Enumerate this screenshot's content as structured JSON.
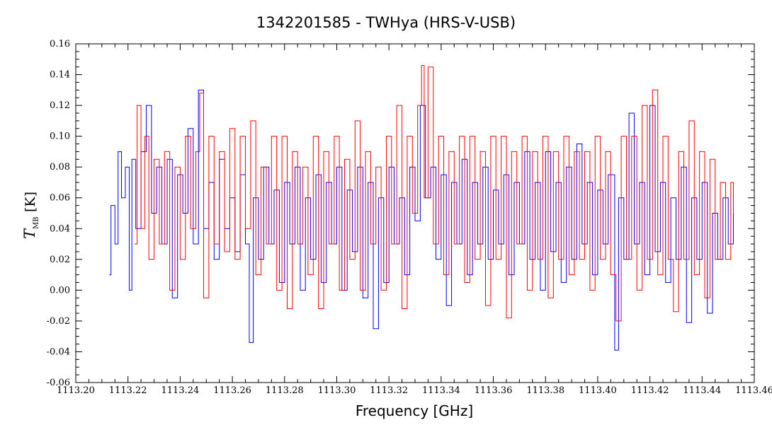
{
  "chart_data": {
    "type": "line",
    "title": "1342201585 - TWHya (HRS-V-USB)",
    "xlabel": "Frequency [GHz]",
    "ylabel": {
      "main": "T",
      "subscript": "MB",
      "unit": "[K]"
    },
    "xlim": [
      1113.2,
      1113.46
    ],
    "ylim": [
      -0.06,
      0.16
    ],
    "x_ticks": [
      "1113.20",
      "1113.22",
      "1113.24",
      "1113.26",
      "1113.28",
      "1113.30",
      "1113.32",
      "1113.34",
      "1113.36",
      "1113.38",
      "1113.40",
      "1113.42",
      "1113.44",
      "1113.46"
    ],
    "y_ticks": [
      "-0.06",
      "-0.04",
      "-0.02",
      "0.00",
      "0.02",
      "0.04",
      "0.06",
      "0.08",
      "0.10",
      "0.12",
      "0.14",
      "0.16"
    ],
    "grid": false,
    "legend": "none",
    "series": [
      {
        "color": "#0000ff",
        "x_start": 1113.2128,
        "x_end": 1113.452,
        "points": [
          [
            1113.2128,
            0.01
          ],
          [
            1113.2135,
            0.055
          ],
          [
            1113.215,
            0.03
          ],
          [
            1113.2162,
            0.09
          ],
          [
            1113.2175,
            0.06
          ],
          [
            1113.219,
            0.08
          ],
          [
            1113.2205,
            0.0
          ],
          [
            1113.2215,
            0.085
          ],
          [
            1113.223,
            0.04
          ],
          [
            1113.225,
            0.09
          ],
          [
            1113.227,
            0.12
          ],
          [
            1113.229,
            0.05
          ],
          [
            1113.231,
            0.08
          ],
          [
            1113.233,
            0.03
          ],
          [
            1113.235,
            0.085
          ],
          [
            1113.237,
            -0.005
          ],
          [
            1113.239,
            0.075
          ],
          [
            1113.241,
            0.05
          ],
          [
            1113.243,
            0.105
          ],
          [
            1113.245,
            0.03
          ],
          [
            1113.247,
            0.13
          ],
          [
            1113.249,
            0.04
          ],
          [
            1113.251,
            0.07
          ],
          [
            1113.253,
            0.02
          ],
          [
            1113.255,
            0.085
          ],
          [
            1113.257,
            0.04
          ],
          [
            1113.259,
            0.06
          ],
          [
            1113.261,
            0.025
          ],
          [
            1113.263,
            0.075
          ],
          [
            1113.265,
            0.03
          ],
          [
            1113.2665,
            -0.034
          ],
          [
            1113.268,
            0.06
          ],
          [
            1113.27,
            0.02
          ],
          [
            1113.272,
            0.08
          ],
          [
            1113.274,
            0.03
          ],
          [
            1113.276,
            0.065
          ],
          [
            1113.278,
            0.005
          ],
          [
            1113.28,
            0.07
          ],
          [
            1113.282,
            0.03
          ],
          [
            1113.284,
            0.08
          ],
          [
            1113.286,
            0.0
          ],
          [
            1113.288,
            0.06
          ],
          [
            1113.29,
            0.02
          ],
          [
            1113.292,
            0.075
          ],
          [
            1113.294,
            0.005
          ],
          [
            1113.296,
            0.07
          ],
          [
            1113.298,
            0.03
          ],
          [
            1113.3,
            0.08
          ],
          [
            1113.302,
            0.0
          ],
          [
            1113.304,
            0.065
          ],
          [
            1113.306,
            0.025
          ],
          [
            1113.308,
            0.08
          ],
          [
            1113.31,
            -0.005
          ],
          [
            1113.312,
            0.07
          ],
          [
            1113.314,
            -0.025
          ],
          [
            1113.316,
            0.06
          ],
          [
            1113.318,
            0.005
          ],
          [
            1113.32,
            0.08
          ],
          [
            1113.322,
            0.03
          ],
          [
            1113.324,
            0.06
          ],
          [
            1113.326,
            0.01
          ],
          [
            1113.328,
            0.08
          ],
          [
            1113.33,
            0.045
          ],
          [
            1113.332,
            0.12
          ],
          [
            1113.334,
            0.06
          ],
          [
            1113.336,
            0.08
          ],
          [
            1113.338,
            0.02
          ],
          [
            1113.34,
            0.075
          ],
          [
            1113.342,
            -0.01
          ],
          [
            1113.344,
            0.07
          ],
          [
            1113.346,
            0.03
          ],
          [
            1113.348,
            0.085
          ],
          [
            1113.35,
            0.01
          ],
          [
            1113.352,
            0.07
          ],
          [
            1113.354,
            0.03
          ],
          [
            1113.356,
            0.08
          ],
          [
            1113.358,
            0.02
          ],
          [
            1113.36,
            0.065
          ],
          [
            1113.362,
            0.03
          ],
          [
            1113.364,
            0.075
          ],
          [
            1113.366,
            0.01
          ],
          [
            1113.368,
            0.07
          ],
          [
            1113.37,
            0.03
          ],
          [
            1113.372,
            0.09
          ],
          [
            1113.374,
            0.02
          ],
          [
            1113.376,
            0.07
          ],
          [
            1113.378,
            0.0
          ],
          [
            1113.38,
            0.09
          ],
          [
            1113.382,
            0.025
          ],
          [
            1113.384,
            0.07
          ],
          [
            1113.386,
            0.005
          ],
          [
            1113.388,
            0.08
          ],
          [
            1113.39,
            0.02
          ],
          [
            1113.392,
            0.095
          ],
          [
            1113.394,
            0.03
          ],
          [
            1113.396,
            0.07
          ],
          [
            1113.398,
            0.01
          ],
          [
            1113.4,
            0.065
          ],
          [
            1113.402,
            0.03
          ],
          [
            1113.404,
            0.075
          ],
          [
            1113.4065,
            -0.039
          ],
          [
            1113.408,
            0.06
          ],
          [
            1113.41,
            0.02
          ],
          [
            1113.412,
            0.115
          ],
          [
            1113.414,
            0.03
          ],
          [
            1113.416,
            0.07
          ],
          [
            1113.418,
            0.01
          ],
          [
            1113.42,
            0.12
          ],
          [
            1113.422,
            0.025
          ],
          [
            1113.424,
            0.07
          ],
          [
            1113.426,
            0.005
          ],
          [
            1113.428,
            0.06
          ],
          [
            1113.43,
            0.02
          ],
          [
            1113.432,
            0.08
          ],
          [
            1113.434,
            -0.021
          ],
          [
            1113.436,
            0.06
          ],
          [
            1113.438,
            0.02
          ],
          [
            1113.44,
            0.07
          ],
          [
            1113.442,
            -0.015
          ],
          [
            1113.444,
            0.05
          ],
          [
            1113.446,
            0.02
          ],
          [
            1113.448,
            0.06
          ],
          [
            1113.45,
            0.03
          ],
          [
            1113.452,
            0.05
          ]
        ]
      },
      {
        "color": "#ff0000",
        "x_start": 1113.2128,
        "x_end": 1113.452,
        "points": [
          [
            1113.2225,
            0.03
          ],
          [
            1113.2235,
            0.12
          ],
          [
            1113.225,
            0.04
          ],
          [
            1113.2265,
            0.1
          ],
          [
            1113.228,
            0.02
          ],
          [
            1113.23,
            0.085
          ],
          [
            1113.232,
            0.03
          ],
          [
            1113.234,
            0.09
          ],
          [
            1113.236,
            0.0
          ],
          [
            1113.238,
            0.08
          ],
          [
            1113.24,
            0.02
          ],
          [
            1113.242,
            0.1
          ],
          [
            1113.244,
            0.04
          ],
          [
            1113.246,
            0.09
          ],
          [
            1113.2475,
            0.128
          ],
          [
            1113.249,
            -0.005
          ],
          [
            1113.251,
            0.1
          ],
          [
            1113.253,
            0.03
          ],
          [
            1113.255,
            0.09
          ],
          [
            1113.257,
            0.025
          ],
          [
            1113.259,
            0.105
          ],
          [
            1113.261,
            0.02
          ],
          [
            1113.263,
            0.1
          ],
          [
            1113.265,
            0.04
          ],
          [
            1113.267,
            0.11
          ],
          [
            1113.269,
            0.01
          ],
          [
            1113.271,
            0.08
          ],
          [
            1113.273,
            0.03
          ],
          [
            1113.275,
            0.1
          ],
          [
            1113.277,
            0.0
          ],
          [
            1113.279,
            0.1
          ],
          [
            1113.281,
            -0.012
          ],
          [
            1113.283,
            0.09
          ],
          [
            1113.285,
            0.03
          ],
          [
            1113.287,
            0.08
          ],
          [
            1113.289,
            0.01
          ],
          [
            1113.291,
            0.1
          ],
          [
            1113.293,
            -0.012
          ],
          [
            1113.295,
            0.09
          ],
          [
            1113.297,
            0.03
          ],
          [
            1113.299,
            0.1
          ],
          [
            1113.301,
            0.0
          ],
          [
            1113.303,
            0.085
          ],
          [
            1113.305,
            0.02
          ],
          [
            1113.307,
            0.11
          ],
          [
            1113.309,
            0.0
          ],
          [
            1113.311,
            0.09
          ],
          [
            1113.313,
            0.03
          ],
          [
            1113.315,
            0.08
          ],
          [
            1113.317,
            0.0
          ],
          [
            1113.319,
            0.1
          ],
          [
            1113.321,
            0.03
          ],
          [
            1113.323,
            0.12
          ],
          [
            1113.325,
            -0.012
          ],
          [
            1113.327,
            0.1
          ],
          [
            1113.329,
            0.05
          ],
          [
            1113.331,
            0.12
          ],
          [
            1113.3325,
            0.146
          ],
          [
            1113.3335,
            0.06
          ],
          [
            1113.335,
            0.145
          ],
          [
            1113.337,
            0.03
          ],
          [
            1113.339,
            0.1
          ],
          [
            1113.341,
            0.01
          ],
          [
            1113.343,
            0.09
          ],
          [
            1113.345,
            0.03
          ],
          [
            1113.347,
            0.1
          ],
          [
            1113.349,
            0.005
          ],
          [
            1113.351,
            0.1
          ],
          [
            1113.353,
            0.02
          ],
          [
            1113.355,
            0.09
          ],
          [
            1113.357,
            -0.01
          ],
          [
            1113.359,
            0.1
          ],
          [
            1113.361,
            0.02
          ],
          [
            1113.363,
            0.1
          ],
          [
            1113.365,
            -0.018
          ],
          [
            1113.367,
            0.09
          ],
          [
            1113.369,
            0.03
          ],
          [
            1113.371,
            0.1
          ],
          [
            1113.373,
            0.0
          ],
          [
            1113.375,
            0.09
          ],
          [
            1113.377,
            0.02
          ],
          [
            1113.379,
            0.1
          ],
          [
            1113.381,
            -0.005
          ],
          [
            1113.383,
            0.09
          ],
          [
            1113.385,
            0.02
          ],
          [
            1113.387,
            0.1
          ],
          [
            1113.389,
            0.01
          ],
          [
            1113.391,
            0.09
          ],
          [
            1113.393,
            0.02
          ],
          [
            1113.395,
            0.09
          ],
          [
            1113.397,
            0.0
          ],
          [
            1113.399,
            0.1
          ],
          [
            1113.401,
            0.02
          ],
          [
            1113.403,
            0.09
          ],
          [
            1113.405,
            0.01
          ],
          [
            1113.407,
            -0.02
          ],
          [
            1113.409,
            0.1
          ],
          [
            1113.411,
            0.02
          ],
          [
            1113.413,
            0.1
          ],
          [
            1113.415,
            0.0
          ],
          [
            1113.417,
            0.12
          ],
          [
            1113.419,
            0.02
          ],
          [
            1113.421,
            0.13
          ],
          [
            1113.423,
            0.01
          ],
          [
            1113.425,
            0.1
          ],
          [
            1113.427,
            0.02
          ],
          [
            1113.429,
            -0.014
          ],
          [
            1113.431,
            0.09
          ],
          [
            1113.433,
            0.02
          ],
          [
            1113.435,
            0.11
          ],
          [
            1113.437,
            0.01
          ],
          [
            1113.439,
            0.09
          ],
          [
            1113.441,
            -0.005
          ],
          [
            1113.443,
            0.085
          ],
          [
            1113.445,
            0.02
          ],
          [
            1113.447,
            0.07
          ],
          [
            1113.449,
            0.02
          ],
          [
            1113.451,
            0.07
          ],
          [
            1113.452,
            0.05
          ]
        ]
      }
    ]
  }
}
